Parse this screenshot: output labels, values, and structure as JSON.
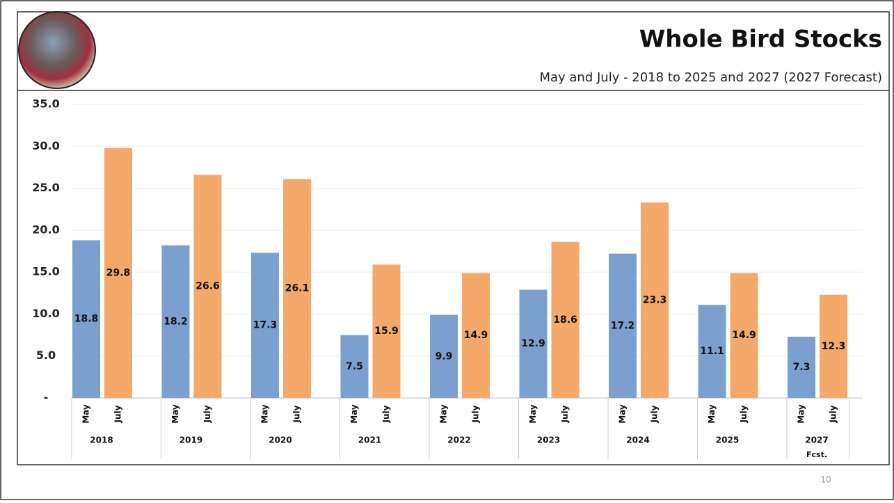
{
  "chart_data": {
    "type": "bar",
    "title": "Whole Bird Stocks",
    "subtitle": "May and July - 2018 to 2025 and 2027 (2027 Forecast)",
    "categories": [
      "2018",
      "2019",
      "2020",
      "2021",
      "2022",
      "2023",
      "2024",
      "2025",
      "2027"
    ],
    "forecast_note": "Fcst.",
    "series": [
      {
        "name": "May",
        "color": "#7ba0cf",
        "values": [
          18.8,
          18.2,
          17.3,
          7.5,
          9.9,
          12.9,
          17.2,
          11.1,
          7.3
        ]
      },
      {
        "name": "July",
        "color": "#f4a96a",
        "values": [
          29.8,
          26.6,
          26.1,
          15.9,
          14.9,
          18.6,
          23.3,
          14.9,
          12.3
        ]
      }
    ],
    "ylim": [
      0,
      35
    ],
    "yticks": [
      {
        "value": 0,
        "label": "-"
      },
      {
        "value": 5,
        "label": "5.0"
      },
      {
        "value": 10,
        "label": "10.0"
      },
      {
        "value": 15,
        "label": "15.0"
      },
      {
        "value": 20,
        "label": "20.0"
      },
      {
        "value": 25,
        "label": "25.0"
      },
      {
        "value": 30,
        "label": "30.0"
      },
      {
        "value": 35,
        "label": "35.0"
      }
    ],
    "grid": true,
    "page_number": "10"
  }
}
